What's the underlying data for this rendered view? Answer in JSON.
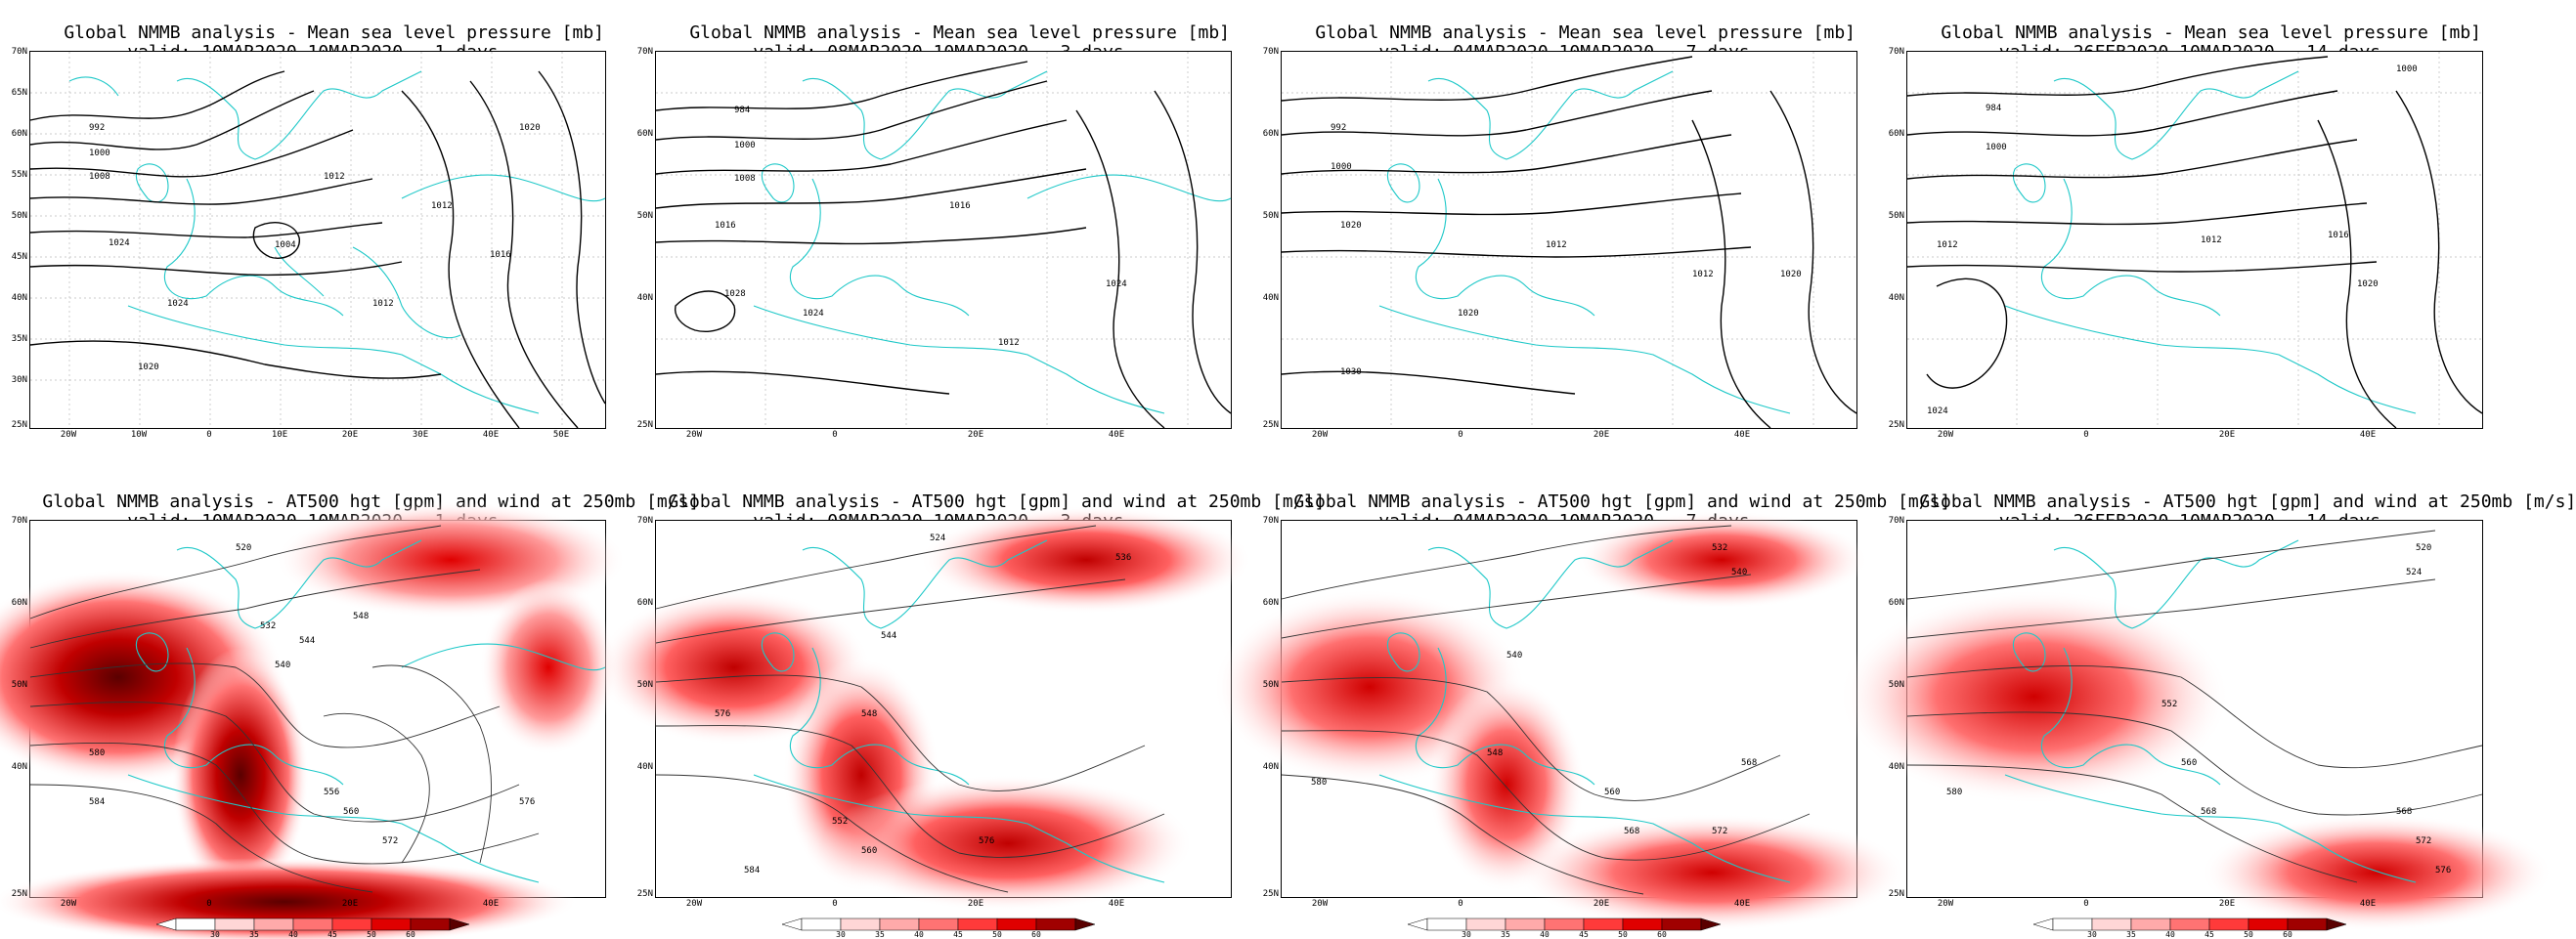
{
  "panels_top": [
    {
      "title": "Global NMMB analysis - Mean sea level pressure [mb]",
      "valid": "valid: 10MAR2020-10MAR2020   1 days"
    },
    {
      "title": "Global NMMB analysis - Mean sea level pressure [mb]",
      "valid": "valid: 08MAR2020-10MAR2020   3 days"
    },
    {
      "title": "Global NMMB analysis - Mean sea level pressure [mb]",
      "valid": "valid: 04MAR2020-10MAR2020   7 days"
    },
    {
      "title": "Global NMMB analysis - Mean sea level pressure [mb]",
      "valid": "valid: 26FEB2020-10MAR2020   14 days"
    }
  ],
  "panels_bottom": [
    {
      "title": "Global NMMB analysis - AT500 hgt [gpm] and wind at 250mb [m/s]",
      "valid": "valid: 10MAR2020-10MAR2020   1 days"
    },
    {
      "title": "Global NMMB analysis - AT500 hgt [gpm] and wind at 250mb [m/s]",
      "valid": "valid: 08MAR2020-10MAR2020   3 days"
    },
    {
      "title": "Global NMMB analysis - AT500 hgt [gpm] and wind at 250mb [m/s]",
      "valid": "valid: 04MAR2020-10MAR2020   7 days"
    },
    {
      "title": "Global NMMB analysis - AT500 hgt [gpm] and wind at 250mb [m/s]",
      "valid": "valid: 26FEB2020-10MAR2020   14 days"
    }
  ],
  "lat_labels": [
    "70N",
    "65N",
    "60N",
    "55N",
    "50N",
    "45N",
    "40N",
    "35N",
    "30N",
    "25N"
  ],
  "lon_labels": [
    "20W",
    "10W",
    "0",
    "10E",
    "20E",
    "30E",
    "40E",
    "50E"
  ],
  "colorbar_labels": [
    "30",
    "35",
    "40",
    "45",
    "50",
    "60"
  ],
  "colors": {
    "coast": "#1ec8c8",
    "contour": "#000000",
    "wind_scale": [
      "#ffd6d6",
      "#ffaaaa",
      "#ff7373",
      "#ff3a3a",
      "#e00000",
      "#a00000",
      "#5a0000"
    ]
  }
}
